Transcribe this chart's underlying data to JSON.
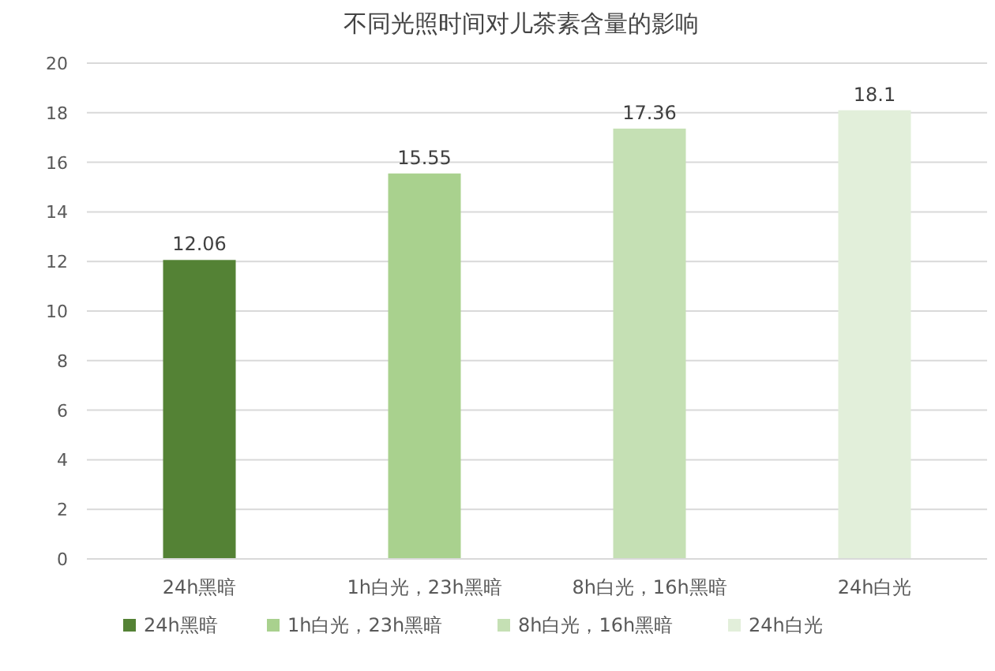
{
  "chart_data": {
    "type": "bar",
    "title": "不同光照时间对儿茶素含量的影响",
    "categories": [
      "24h黑暗",
      "1h白光，23h黑暗",
      "8h白光，16h黑暗",
      "24h白光"
    ],
    "series": [
      {
        "name": "24h黑暗",
        "color": "#548235",
        "values": [
          12.06,
          null,
          null,
          null
        ]
      },
      {
        "name": "1h白光，23h黑暗",
        "color": "#a9d18e",
        "values": [
          null,
          15.55,
          null,
          null
        ]
      },
      {
        "name": "8h白光，16h黑暗",
        "color": "#c5e0b4",
        "values": [
          null,
          null,
          17.36,
          null
        ]
      },
      {
        "name": "24h白光",
        "color": "#e2efda",
        "values": [
          null,
          null,
          null,
          18.1
        ]
      }
    ],
    "ylim": [
      0,
      20
    ],
    "yticks": [
      0,
      2,
      4,
      6,
      8,
      10,
      12,
      14,
      16,
      18,
      20
    ],
    "grid": "y",
    "legend": "bottom",
    "data_labels": true
  }
}
